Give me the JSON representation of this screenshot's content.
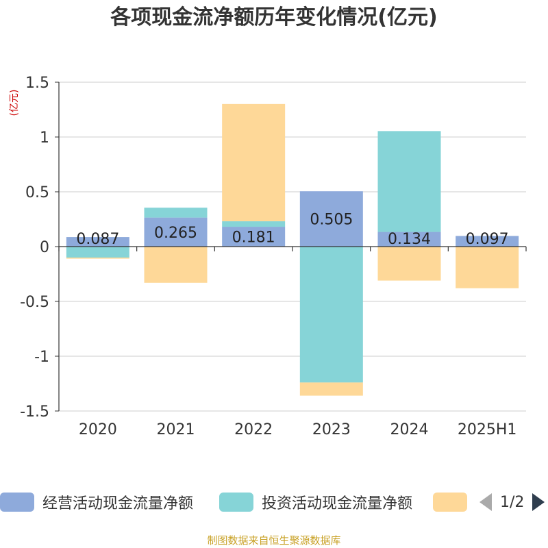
{
  "title": "各项现金流净额历年变化情况(亿元)",
  "source": "制图数据来自恒生聚源数据库",
  "chart_data": {
    "type": "bar",
    "stacked": true,
    "title": "各项现金流净额历年变化情况(亿元)",
    "ylabel": "(亿元)",
    "ylim": [
      -1.5,
      1.5
    ],
    "yticks": [
      1.5,
      1,
      0.5,
      0,
      -0.5,
      -1,
      -1.5
    ],
    "ytick_labels": [
      "1.5",
      "1",
      "0.5",
      "0",
      "-0.5",
      "-1",
      "-1.5"
    ],
    "grid": true,
    "legend_position": "bottom",
    "categories": [
      "2020",
      "2021",
      "2022",
      "2023",
      "2024",
      "2025H1"
    ],
    "series": [
      {
        "name": "经营活动现金流量净额",
        "color": "#8eaadb",
        "values": [
          0.087,
          0.265,
          0.181,
          0.505,
          0.134,
          0.097
        ]
      },
      {
        "name": "投资活动现金流量净额",
        "color": "#86d4d7",
        "values": [
          -0.1,
          0.09,
          0.05,
          -1.24,
          0.92,
          0.0
        ]
      },
      {
        "name": "",
        "color": "#fed898",
        "values": [
          -0.01,
          -0.33,
          1.07,
          -0.12,
          -0.31,
          -0.38
        ]
      }
    ],
    "data_labels": [
      "0.087",
      "0.265",
      "0.181",
      "0.505",
      "0.134",
      "0.097"
    ]
  },
  "legend": {
    "items": [
      {
        "label": "经营活动现金流量净额",
        "color": "#8eaadb"
      },
      {
        "label": "投资活动现金流量净额",
        "color": "#86d4d7"
      },
      {
        "label": "",
        "color": "#fed898"
      }
    ],
    "page": "1/2"
  }
}
